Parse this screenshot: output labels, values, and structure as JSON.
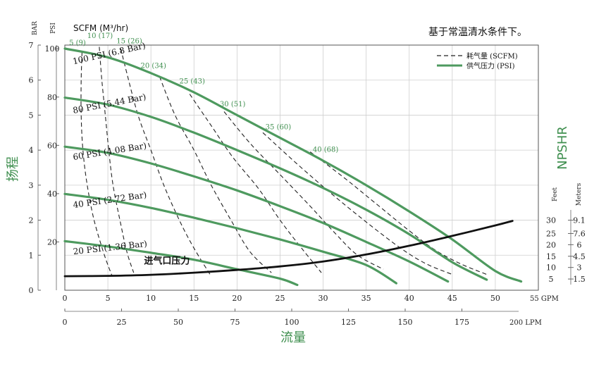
{
  "chart_data": {
    "type": "line",
    "note": "基于常温清水条件下。",
    "x_units": {
      "gpm_label": "55 GPM",
      "lpm_label": "200 LPM",
      "gpm_ticks": [
        "0",
        "5",
        "10",
        "15",
        "20",
        "25",
        "30",
        "35",
        "40",
        "45",
        "50"
      ],
      "lpm_ticks": [
        "0",
        "25",
        "50",
        "75",
        "100",
        "125",
        "150",
        "175"
      ],
      "xlabel": "流量",
      "xlim_gpm": [
        0,
        55
      ]
    },
    "y_units": {
      "ylabel": "扬程",
      "bar_label": "BAR",
      "psi_label": "PSI",
      "bar_ticks": [
        "0",
        "1",
        "2",
        "3",
        "4",
        "5",
        "6",
        "7"
      ],
      "psi_ticks": [
        "20",
        "40",
        "60",
        "80",
        "100"
      ],
      "ylim_bar": [
        0,
        7
      ]
    },
    "npshr": {
      "label": "NPSHR",
      "feet_label": "Feet",
      "meters_label": "Meters",
      "rows": [
        {
          "feet": "30",
          "meters": "9.1",
          "bar": 2.0
        },
        {
          "feet": "25",
          "meters": "7.6",
          "bar": 1.62
        },
        {
          "feet": "20",
          "meters": "6",
          "bar": 1.3
        },
        {
          "feet": "15",
          "meters": "4.5",
          "bar": 0.97
        },
        {
          "feet": "10",
          "meters": "3",
          "bar": 0.65
        },
        {
          "feet": "5",
          "meters": "1.5",
          "bar": 0.32
        }
      ]
    },
    "legend": {
      "placement": "top-right",
      "air": "耗气量 (SCFM)",
      "pressure": "供气压力 (PSI)"
    },
    "scfm_title": "SCFM (M³/hr)",
    "colors": {
      "pressure": "#4e9a5f",
      "air": "#222222",
      "npshr": "#111111",
      "label_green": "#3f8f4f"
    },
    "pressure_series": [
      {
        "name": "100 PSI (6.8 Bar)",
        "points": [
          [
            0,
            6.9
          ],
          [
            5,
            6.65
          ],
          [
            10,
            6.2
          ],
          [
            15,
            5.65
          ],
          [
            20,
            5.0
          ],
          [
            25,
            4.35
          ],
          [
            30,
            3.7
          ],
          [
            35,
            3.0
          ],
          [
            40,
            2.25
          ],
          [
            45,
            1.45
          ],
          [
            50,
            0.55
          ],
          [
            53,
            0.25
          ]
        ]
      },
      {
        "name": "80 PSI (5.44 Bar)",
        "points": [
          [
            0,
            5.5
          ],
          [
            5,
            5.3
          ],
          [
            10,
            4.95
          ],
          [
            15,
            4.5
          ],
          [
            20,
            4.0
          ],
          [
            25,
            3.48
          ],
          [
            30,
            2.92
          ],
          [
            35,
            2.3
          ],
          [
            40,
            1.6
          ],
          [
            45,
            0.8
          ],
          [
            49,
            0.3
          ]
        ]
      },
      {
        "name": "60 PSI (4.08 Bar)",
        "points": [
          [
            0,
            4.1
          ],
          [
            5,
            3.92
          ],
          [
            10,
            3.62
          ],
          [
            15,
            3.25
          ],
          [
            20,
            2.85
          ],
          [
            25,
            2.4
          ],
          [
            30,
            1.92
          ],
          [
            35,
            1.38
          ],
          [
            40,
            0.82
          ],
          [
            44.5,
            0.25
          ]
        ]
      },
      {
        "name": "40 PSI (2.72 Bar)",
        "points": [
          [
            0,
            2.75
          ],
          [
            5,
            2.58
          ],
          [
            10,
            2.35
          ],
          [
            15,
            2.07
          ],
          [
            20,
            1.77
          ],
          [
            25,
            1.45
          ],
          [
            30,
            1.1
          ],
          [
            35,
            0.72
          ],
          [
            38.5,
            0.2
          ]
        ]
      },
      {
        "name": "20 PSI (1.36 Bar)",
        "points": [
          [
            0,
            1.4
          ],
          [
            5,
            1.25
          ],
          [
            10,
            1.07
          ],
          [
            15,
            0.87
          ],
          [
            20,
            0.6
          ],
          [
            25,
            0.33
          ],
          [
            27,
            0.15
          ]
        ]
      }
    ],
    "air_series": [
      {
        "name": "5 (9)",
        "points": [
          [
            2.0,
            6.8
          ],
          [
            1.9,
            6.0
          ],
          [
            1.9,
            5.0
          ],
          [
            2.1,
            4.0
          ],
          [
            2.6,
            3.0
          ],
          [
            3.4,
            2.0
          ],
          [
            4.6,
            1.0
          ],
          [
            5.5,
            0.4
          ]
        ]
      },
      {
        "name": "10 (17)",
        "points": [
          [
            4.0,
            6.95
          ],
          [
            4.3,
            6.0
          ],
          [
            4.7,
            5.0
          ],
          [
            5.1,
            4.0
          ],
          [
            5.6,
            3.0
          ],
          [
            6.4,
            2.0
          ],
          [
            7.2,
            1.1
          ],
          [
            8.0,
            0.5
          ]
        ]
      },
      {
        "name": "15 (26)",
        "points": [
          [
            6.5,
            6.9
          ],
          [
            7.2,
            6.2
          ],
          [
            8.5,
            5.0
          ],
          [
            10.0,
            4.0
          ],
          [
            11.5,
            3.0
          ],
          [
            13.3,
            2.0
          ],
          [
            15.0,
            1.2
          ],
          [
            17.0,
            0.4
          ]
        ]
      },
      {
        "name": "20 (34)",
        "points": [
          [
            11.0,
            6.1
          ],
          [
            12.8,
            5.0
          ],
          [
            15.0,
            4.0
          ],
          [
            17.0,
            3.0
          ],
          [
            19.3,
            2.0
          ],
          [
            21.5,
            1.1
          ],
          [
            24.0,
            0.5
          ]
        ]
      },
      {
        "name": "25 (43)",
        "points": [
          [
            14.5,
            5.6
          ],
          [
            17.0,
            4.7
          ],
          [
            19.5,
            3.8
          ],
          [
            22.5,
            2.9
          ],
          [
            25.0,
            2.0
          ],
          [
            27.5,
            1.2
          ],
          [
            29.8,
            0.5
          ]
        ]
      },
      {
        "name": "30 (51)",
        "points": [
          [
            18.5,
            5.1
          ],
          [
            21.5,
            4.2
          ],
          [
            25.0,
            3.3
          ],
          [
            28.5,
            2.4
          ],
          [
            31.5,
            1.6
          ],
          [
            34.0,
            1.0
          ],
          [
            37.0,
            0.6
          ]
        ]
      },
      {
        "name": "35 (60)",
        "points": [
          [
            23.0,
            4.5
          ],
          [
            27.0,
            3.6
          ],
          [
            31.0,
            2.75
          ],
          [
            35.0,
            1.95
          ],
          [
            39.0,
            1.2
          ],
          [
            42.0,
            0.75
          ],
          [
            45.0,
            0.45
          ]
        ]
      },
      {
        "name": "40 (68)",
        "points": [
          [
            28.5,
            3.95
          ],
          [
            32.5,
            3.2
          ],
          [
            36.0,
            2.5
          ],
          [
            40.0,
            1.7
          ],
          [
            43.0,
            1.15
          ],
          [
            46.0,
            0.75
          ],
          [
            49.0,
            0.45
          ]
        ]
      }
    ],
    "air_label_positions": [
      {
        "text": "5 (9)",
        "x": 0.5,
        "y": 7.0
      },
      {
        "text": "10 (17)",
        "x": 2.6,
        "y": 7.2
      },
      {
        "text": "15 (26)",
        "x": 6.0,
        "y": 7.05
      },
      {
        "text": "20 (34)",
        "x": 8.8,
        "y": 6.35
      },
      {
        "text": "25 (43)",
        "x": 13.3,
        "y": 5.9
      },
      {
        "text": "30 (51)",
        "x": 18.0,
        "y": 5.25
      },
      {
        "text": "35 (60)",
        "x": 23.3,
        "y": 4.6
      },
      {
        "text": "40 (68)",
        "x": 28.8,
        "y": 3.95
      }
    ],
    "npshr_series": {
      "name": "进气口压力",
      "points": [
        [
          0,
          0.4
        ],
        [
          5,
          0.41
        ],
        [
          10,
          0.44
        ],
        [
          15,
          0.5
        ],
        [
          20,
          0.58
        ],
        [
          25,
          0.68
        ],
        [
          30,
          0.82
        ],
        [
          35,
          1.02
        ],
        [
          40,
          1.27
        ],
        [
          45,
          1.55
        ],
        [
          50,
          1.85
        ],
        [
          52,
          1.98
        ]
      ]
    }
  }
}
